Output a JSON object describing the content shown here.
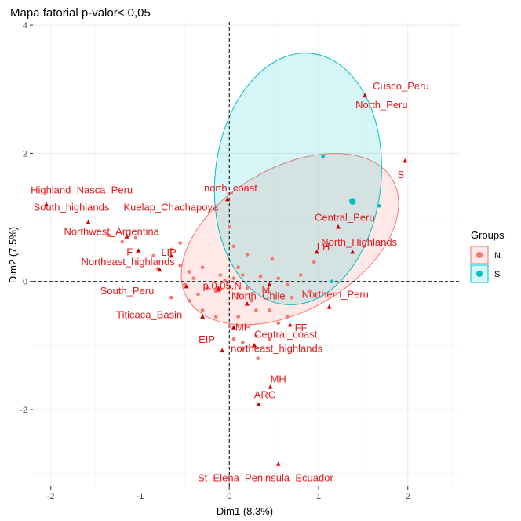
{
  "chart_data": {
    "type": "scatter",
    "title": "Mapa fatorial p-valor< 0,05",
    "xlabel": "Dim1 (8.3%)",
    "ylabel": "Dim2 (7.5%)",
    "xlim": [
      -2.2,
      2.6
    ],
    "ylim": [
      -3.2,
      4.05
    ],
    "x_ticks": [
      -2,
      -1,
      0,
      1,
      2
    ],
    "y_ticks": [
      -2,
      0,
      2,
      4
    ],
    "grid": true,
    "reference_lines": {
      "x": 0,
      "y": 0,
      "style": "dashed"
    },
    "legend": {
      "title": "Groups",
      "position": "right",
      "entries": [
        {
          "label": "N",
          "color": "#f8766d"
        },
        {
          "label": "S",
          "color": "#00bfc4"
        }
      ]
    },
    "groups": [
      {
        "name": "N",
        "color": "#f8766d",
        "fill": "#fde9e7",
        "ellipse": {
          "cx": 0.68,
          "cy": 0.66,
          "rx": 0.8,
          "ry": 1.85,
          "angle": 60
        },
        "centroid": {
          "x": -0.12,
          "y": -0.12
        },
        "points": [
          [
            -1.35,
            0.72
          ],
          [
            -1.2,
            0.62
          ],
          [
            -1.05,
            0.68
          ],
          [
            -0.85,
            0.4
          ],
          [
            -0.65,
            0.5
          ],
          [
            -0.55,
            0.25
          ],
          [
            -0.45,
            0.15
          ],
          [
            -0.5,
            -0.05
          ],
          [
            -0.4,
            0.05
          ],
          [
            -0.35,
            -0.2
          ],
          [
            -0.25,
            -0.1
          ],
          [
            -0.15,
            -0.15
          ],
          [
            -0.1,
            0.1
          ],
          [
            -0.05,
            0.02
          ],
          [
            0.0,
            0.85
          ],
          [
            0.05,
            0.55
          ],
          [
            0.1,
            0.22
          ],
          [
            0.05,
            0.05
          ],
          [
            0.15,
            0.1
          ],
          [
            0.2,
            -0.1
          ],
          [
            0.25,
            -0.3
          ],
          [
            0.3,
            -0.45
          ],
          [
            0.1,
            -0.55
          ],
          [
            0.0,
            -0.7
          ],
          [
            0.05,
            -0.9
          ],
          [
            0.15,
            -0.95
          ],
          [
            0.3,
            -0.85
          ],
          [
            0.45,
            -0.9
          ],
          [
            0.55,
            -0.65
          ],
          [
            0.65,
            -0.55
          ],
          [
            0.7,
            -0.25
          ],
          [
            0.55,
            0.05
          ],
          [
            0.8,
            0.1
          ],
          [
            0.9,
            -0.15
          ],
          [
            0.95,
            0.3
          ],
          [
            0.2,
            0.42
          ],
          [
            0.48,
            0.35
          ],
          [
            -0.8,
            0.2
          ],
          [
            -0.65,
            -0.25
          ],
          [
            -0.45,
            -0.3
          ],
          [
            -0.3,
            -0.45
          ],
          [
            0.15,
            -1.05
          ],
          [
            0.32,
            -1.2
          ],
          [
            0.45,
            -0.45
          ],
          [
            -0.15,
            -0.55
          ],
          [
            -0.55,
            0.6
          ],
          [
            0.35,
            0.08
          ],
          [
            0.65,
            -0.05
          ],
          [
            -0.3,
            0.22
          ],
          [
            0.1,
            -0.2
          ]
        ]
      },
      {
        "name": "S",
        "color": "#00bfc4",
        "fill": "#e0f9fa",
        "ellipse": {
          "cx": 0.77,
          "cy": 1.6,
          "rx": 0.93,
          "ry": 1.97,
          "angle": 6
        },
        "centroid": {
          "x": 1.38,
          "y": 1.25
        },
        "points": [
          [
            1.05,
            1.95
          ],
          [
            1.68,
            1.18
          ],
          [
            1.15,
            0.0
          ],
          [
            1.38,
            1.25
          ]
        ]
      }
    ],
    "labeled_points": [
      {
        "label": "Cusco_Peru",
        "x": 1.52,
        "y": 2.9
      },
      {
        "label": "North_Peru",
        "x": 1.52,
        "y": 2.9
      },
      {
        "label": "S",
        "x": 1.97,
        "y": 1.88
      },
      {
        "label": "Highland_Nasca_Peru",
        "x": -2.05,
        "y": 1.2
      },
      {
        "label": "north_coast",
        "x": -0.02,
        "y": 1.28
      },
      {
        "label": "South_highlands",
        "x": -1.58,
        "y": 0.92
      },
      {
        "label": "Kuelap_Chachapoya",
        "x": -1.58,
        "y": 0.92
      },
      {
        "label": "Central_Peru",
        "x": 1.22,
        "y": 0.85
      },
      {
        "label": "Northwest_Argentina",
        "x": -1.15,
        "y": 0.7
      },
      {
        "label": "F",
        "x": -1.02,
        "y": 0.48
      },
      {
        "label": "LIP",
        "x": -0.65,
        "y": 0.4
      },
      {
        "label": "LH",
        "x": 0.98,
        "y": 0.46
      },
      {
        "label": "North_Highlands",
        "x": 1.38,
        "y": 0.46
      },
      {
        "label": "Northeast_highlands",
        "x": -0.78,
        "y": 0.18
      },
      {
        "label": "South_Peru",
        "x": -0.48,
        "y": -0.08
      },
      {
        "label": "p.0,05.N",
        "x": -0.12,
        "y": -0.12
      },
      {
        "label": "M",
        "x": 0.45,
        "y": -0.05
      },
      {
        "label": "North_Chile",
        "x": 0.2,
        "y": -0.35
      },
      {
        "label": "Northern_Peru",
        "x": 1.12,
        "y": -0.4
      },
      {
        "label": "Titicaca_Basin",
        "x": -0.3,
        "y": -0.55
      },
      {
        "label": "FF",
        "x": 0.68,
        "y": -0.68
      },
      {
        "label": "MH",
        "x": 0.05,
        "y": -0.72
      },
      {
        "label": "EIP",
        "x": -0.08,
        "y": -1.08
      },
      {
        "label": "Central_coast",
        "x": 0.28,
        "y": -1.0
      },
      {
        "label": "northeast_highlands",
        "x": 0.28,
        "y": -1.0
      },
      {
        "label": "MH",
        "x": 0.46,
        "y": -1.65
      },
      {
        "label": "ARC",
        "x": 0.33,
        "y": -1.92
      },
      {
        "label": "_St_Elena_Peninsula_Ecuador",
        "x": 0.55,
        "y": -2.85
      }
    ]
  }
}
